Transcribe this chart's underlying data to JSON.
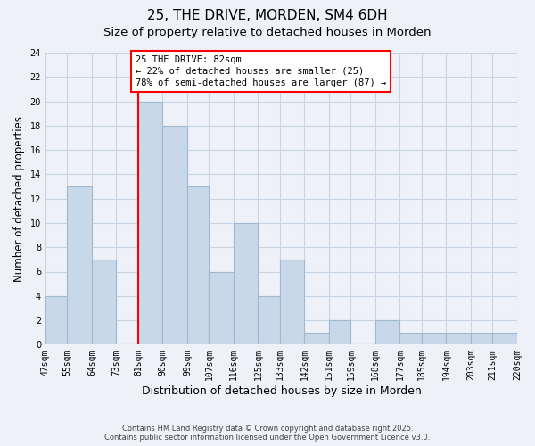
{
  "title": "25, THE DRIVE, MORDEN, SM4 6DH",
  "subtitle": "Size of property relative to detached houses in Morden",
  "xlabel": "Distribution of detached houses by size in Morden",
  "ylabel": "Number of detached properties",
  "bins": [
    47,
    55,
    64,
    73,
    81,
    90,
    99,
    107,
    116,
    125,
    133,
    142,
    151,
    159,
    168,
    177,
    185,
    194,
    203,
    211,
    220
  ],
  "bin_labels": [
    "47sqm",
    "55sqm",
    "64sqm",
    "73sqm",
    "81sqm",
    "90sqm",
    "99sqm",
    "107sqm",
    "116sqm",
    "125sqm",
    "133sqm",
    "142sqm",
    "151sqm",
    "159sqm",
    "168sqm",
    "177sqm",
    "185sqm",
    "194sqm",
    "203sqm",
    "211sqm",
    "220sqm"
  ],
  "counts": [
    4,
    13,
    7,
    0,
    20,
    18,
    13,
    6,
    10,
    4,
    7,
    1,
    2,
    0,
    2,
    1,
    1,
    1,
    1,
    1
  ],
  "bar_color": "#c8d8e8",
  "bar_edge_color": "#a0b8d0",
  "grid_color": "#c8d4e4",
  "background_color": "#eef2f8",
  "red_line_x": 81,
  "annotation_text": "25 THE DRIVE: 82sqm\n← 22% of detached houses are smaller (25)\n78% of semi-detached houses are larger (87) →",
  "annotation_box_color": "white",
  "annotation_box_edge_color": "red",
  "ylim": [
    0,
    24
  ],
  "yticks": [
    0,
    2,
    4,
    6,
    8,
    10,
    12,
    14,
    16,
    18,
    20,
    22,
    24
  ],
  "footer": "Contains HM Land Registry data © Crown copyright and database right 2025.\nContains public sector information licensed under the Open Government Licence v3.0.",
  "title_fontsize": 11,
  "subtitle_fontsize": 9.5,
  "xlabel_fontsize": 9,
  "ylabel_fontsize": 8.5,
  "tick_fontsize": 7
}
